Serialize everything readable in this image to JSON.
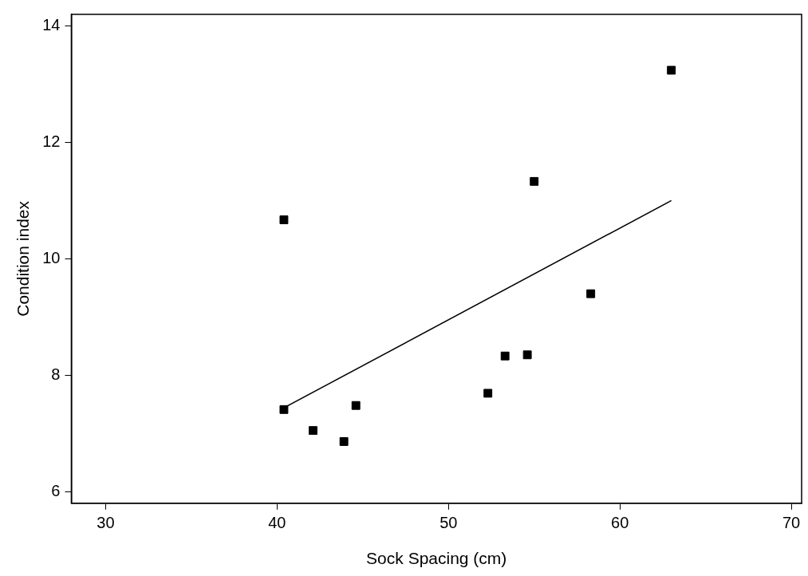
{
  "chart_data": {
    "type": "scatter",
    "xlabel": "Sock Spacing (cm)",
    "ylabel": "Condition index",
    "xlim": [
      28,
      70.6
    ],
    "xticks": [
      30,
      40,
      50,
      60,
      70
    ],
    "ylim": [
      5.8,
      14.2
    ],
    "yticks": [
      6,
      8,
      10,
      12,
      14
    ],
    "grid": false,
    "legend": false,
    "marker": "square",
    "series": [
      {
        "color": "#000000",
        "x": [
          40.4,
          40.4,
          42.1,
          43.9,
          44.6,
          52.3,
          53.3,
          54.6,
          55.0,
          58.3,
          63.0
        ],
        "values": [
          10.67,
          7.41,
          7.05,
          6.86,
          7.48,
          7.69,
          8.33,
          8.35,
          11.33,
          9.4,
          13.24
        ]
      },
      {
        "type": "line",
        "marker": "none",
        "color": "#000000",
        "x": [
          40.4,
          63.0
        ],
        "values": [
          7.44,
          11.0
        ]
      }
    ]
  }
}
